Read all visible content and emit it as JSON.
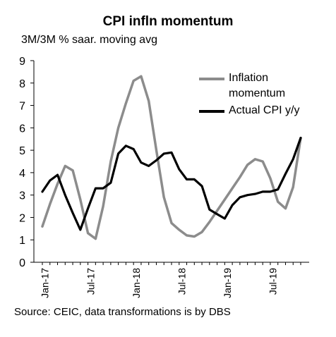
{
  "header": {
    "title": "CPI infln momentum",
    "subtitle": "3M/3M % saar. moving avg"
  },
  "footer": {
    "source": "Source: CEIC, data transformations is by DBS"
  },
  "legend": {
    "momentum_label": "Inflation momentum",
    "actual_label": "Actual CPI y/y"
  },
  "colors": {
    "momentum": "#8c8c8c",
    "actual": "#000000",
    "axis": "#000000"
  },
  "chart_data": {
    "type": "line",
    "title": "CPI infln momentum",
    "subtitle": "3M/3M % saar. moving avg",
    "xlabel": "",
    "ylabel": "",
    "ylim": [
      0,
      9
    ],
    "yticks": [
      0,
      1,
      2,
      3,
      4,
      5,
      6,
      7,
      8,
      9
    ],
    "grid": false,
    "legend_position": "top-right",
    "x": [
      "2017-01",
      "2017-02",
      "2017-03",
      "2017-04",
      "2017-05",
      "2017-06",
      "2017-07",
      "2017-08",
      "2017-09",
      "2017-10",
      "2017-11",
      "2017-12",
      "2018-01",
      "2018-02",
      "2018-03",
      "2018-04",
      "2018-05",
      "2018-06",
      "2018-07",
      "2018-08",
      "2018-09",
      "2018-10",
      "2018-11",
      "2018-12",
      "2019-01",
      "2019-02",
      "2019-03",
      "2019-04",
      "2019-05",
      "2019-06",
      "2019-07",
      "2019-08",
      "2019-09",
      "2019-10",
      "2019-11"
    ],
    "xtick_labels": [
      "Jan-17",
      "Jul-17",
      "Jan-18",
      "Jul-18",
      "Jan-19",
      "Jul-19"
    ],
    "xtick_positions": [
      "2017-01",
      "2017-07",
      "2018-01",
      "2018-07",
      "2019-01",
      "2019-07"
    ],
    "series": [
      {
        "name": "Inflation momentum",
        "color": "#8c8c8c",
        "values": [
          1.6,
          2.6,
          3.5,
          4.3,
          4.1,
          2.8,
          1.3,
          1.05,
          2.5,
          4.5,
          6.0,
          7.1,
          8.1,
          8.3,
          7.2,
          5.0,
          2.9,
          1.75,
          1.45,
          1.2,
          1.15,
          1.35,
          1.8,
          2.3,
          2.8,
          3.3,
          3.8,
          4.35,
          4.6,
          4.5,
          3.75,
          2.7,
          2.4,
          3.35,
          5.55
        ]
      },
      {
        "name": "Actual CPI y/y",
        "color": "#000000",
        "values": [
          3.15,
          3.65,
          3.9,
          3.0,
          2.2,
          1.45,
          2.4,
          3.3,
          3.3,
          3.55,
          4.85,
          5.2,
          5.05,
          4.45,
          4.3,
          4.55,
          4.85,
          4.9,
          4.15,
          3.7,
          3.7,
          3.4,
          2.35,
          2.15,
          1.95,
          2.55,
          2.9,
          3.0,
          3.05,
          3.15,
          3.15,
          3.25,
          3.95,
          4.6,
          5.55
        ]
      }
    ]
  }
}
